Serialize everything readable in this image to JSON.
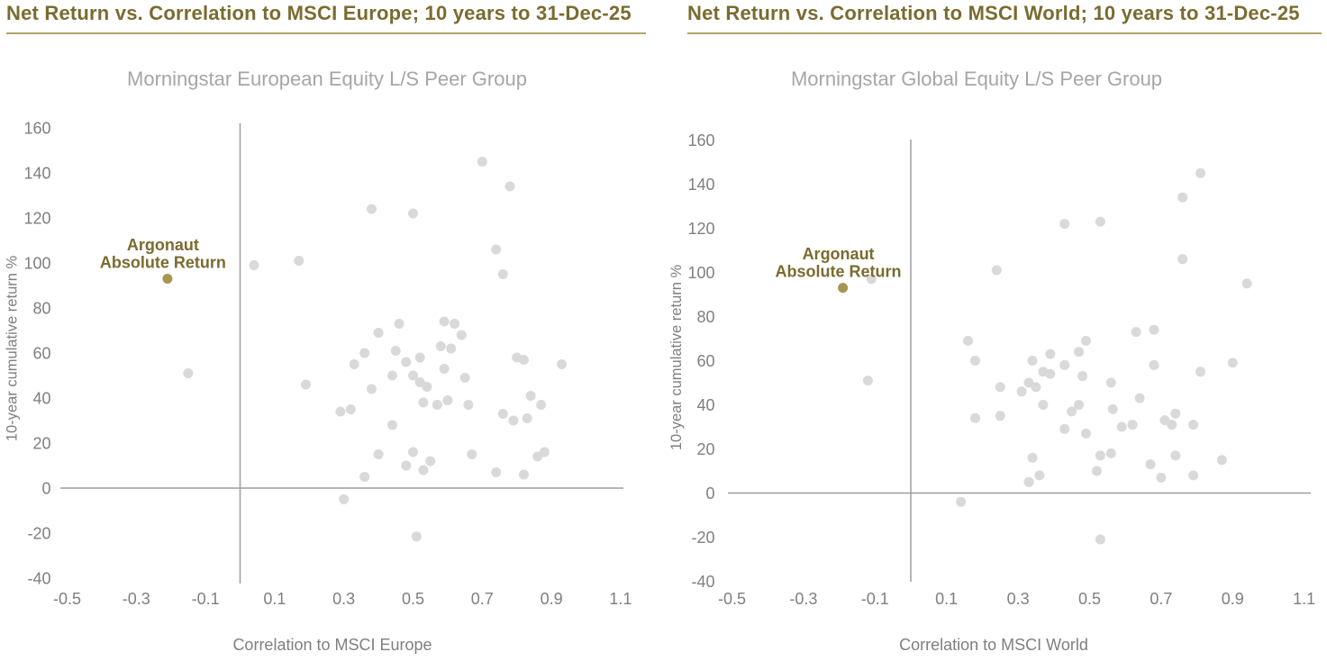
{
  "colors": {
    "title": "#7a6b2f",
    "rule": "#b3a567",
    "axis_line": "#9d9d9d",
    "tick_label": "#7f7f7f",
    "subtitle": "#a6a6a6",
    "axis_title": "#7f7f7f",
    "peer_point": "#d9d9d9",
    "argonaut": "#a79552"
  },
  "chart_data": [
    {
      "type": "scatter",
      "title": "Net Return vs. Correlation to MSCI Europe; 10 years to 31-Dec-25",
      "subtitle": "Morningstar European Equity L/S Peer Group",
      "xlabel": "Correlation to MSCI Europe",
      "ylabel": "10-year cumulative return %",
      "xlim": [
        -0.5,
        1.1
      ],
      "ylim": [
        -40,
        160
      ],
      "x_ticks": [
        -0.5,
        -0.3,
        -0.1,
        0.1,
        0.3,
        0.5,
        0.7,
        0.9,
        1.1
      ],
      "y_ticks": [
        160,
        140,
        120,
        100,
        80,
        60,
        40,
        20,
        0,
        -20,
        -40
      ],
      "grid": false,
      "legend": "none",
      "series": [
        {
          "name": "Morningstar European Equity L/S peer funds",
          "color": "#d9d9d9",
          "points": [
            [
              -0.15,
              51
            ],
            [
              0.04,
              99
            ],
            [
              0.17,
              101
            ],
            [
              0.19,
              46
            ],
            [
              0.38,
              124
            ],
            [
              0.5,
              122
            ],
            [
              0.7,
              145
            ],
            [
              0.78,
              134
            ],
            [
              0.74,
              106
            ],
            [
              0.76,
              95
            ],
            [
              0.46,
              73
            ],
            [
              0.4,
              69
            ],
            [
              0.59,
              74
            ],
            [
              0.62,
              73
            ],
            [
              0.64,
              68
            ],
            [
              0.58,
              63
            ],
            [
              0.61,
              62
            ],
            [
              0.36,
              60
            ],
            [
              0.45,
              61
            ],
            [
              0.52,
              58
            ],
            [
              0.48,
              56
            ],
            [
              0.33,
              55
            ],
            [
              0.44,
              50
            ],
            [
              0.5,
              50
            ],
            [
              0.52,
              47
            ],
            [
              0.54,
              45
            ],
            [
              0.65,
              49
            ],
            [
              0.59,
              53
            ],
            [
              0.8,
              58
            ],
            [
              0.82,
              57
            ],
            [
              0.93,
              55
            ],
            [
              0.38,
              44
            ],
            [
              0.29,
              34
            ],
            [
              0.32,
              35
            ],
            [
              0.53,
              38
            ],
            [
              0.57,
              37
            ],
            [
              0.6,
              39
            ],
            [
              0.66,
              37
            ],
            [
              0.44,
              28
            ],
            [
              0.76,
              33
            ],
            [
              0.79,
              30
            ],
            [
              0.83,
              31
            ],
            [
              0.84,
              41
            ],
            [
              0.87,
              37
            ],
            [
              0.4,
              15
            ],
            [
              0.5,
              16
            ],
            [
              0.48,
              10
            ],
            [
              0.53,
              8
            ],
            [
              0.55,
              12
            ],
            [
              0.36,
              5
            ],
            [
              0.67,
              15
            ],
            [
              0.86,
              14
            ],
            [
              0.88,
              16
            ],
            [
              0.74,
              7
            ],
            [
              0.82,
              6
            ],
            [
              0.3,
              -5
            ],
            [
              0.51,
              -21.5
            ]
          ]
        },
        {
          "name": "Argonaut Absolute Return",
          "color": "#a79552",
          "points": [
            [
              -0.21,
              93
            ]
          ],
          "annotation": [
            "Argonaut",
            "Absolute Return"
          ]
        }
      ]
    },
    {
      "type": "scatter",
      "title": "Net Return vs. Correlation to MSCI World; 10 years to 31-Dec-25",
      "subtitle": "Morningstar Global Equity L/S Peer Group",
      "xlabel": "Correlation to MSCI World",
      "ylabel": "10-year cumulative return %",
      "xlim": [
        -0.5,
        1.1
      ],
      "ylim": [
        -40,
        160
      ],
      "x_ticks": [
        -0.5,
        -0.3,
        -0.1,
        0.1,
        0.3,
        0.5,
        0.7,
        0.9,
        1.1
      ],
      "y_ticks": [
        160,
        140,
        120,
        100,
        80,
        60,
        40,
        20,
        0,
        -20,
        -40
      ],
      "grid": false,
      "legend": "none",
      "series": [
        {
          "name": "Morningstar Global Equity L/S peer funds",
          "color": "#d9d9d9",
          "points": [
            [
              -0.11,
              97
            ],
            [
              -0.12,
              51
            ],
            [
              0.14,
              -4
            ],
            [
              0.16,
              69
            ],
            [
              0.18,
              60
            ],
            [
              0.24,
              101
            ],
            [
              0.43,
              122
            ],
            [
              0.53,
              123
            ],
            [
              0.81,
              145
            ],
            [
              0.76,
              134
            ],
            [
              0.76,
              106
            ],
            [
              0.94,
              95
            ],
            [
              0.34,
              60
            ],
            [
              0.39,
              63
            ],
            [
              0.47,
              64
            ],
            [
              0.49,
              69
            ],
            [
              0.43,
              58
            ],
            [
              0.37,
              55
            ],
            [
              0.39,
              54
            ],
            [
              0.48,
              53
            ],
            [
              0.25,
              48
            ],
            [
              0.33,
              50
            ],
            [
              0.35,
              48
            ],
            [
              0.31,
              46
            ],
            [
              0.56,
              50
            ],
            [
              0.63,
              73
            ],
            [
              0.68,
              74
            ],
            [
              0.68,
              58
            ],
            [
              0.81,
              55
            ],
            [
              0.9,
              59
            ],
            [
              0.64,
              43
            ],
            [
              0.18,
              34
            ],
            [
              0.25,
              35
            ],
            [
              0.37,
              40
            ],
            [
              0.45,
              37
            ],
            [
              0.47,
              40
            ],
            [
              0.43,
              29
            ],
            [
              0.49,
              27
            ],
            [
              0.34,
              16
            ],
            [
              0.36,
              8
            ],
            [
              0.33,
              5
            ],
            [
              0.53,
              17
            ],
            [
              0.56,
              18
            ],
            [
              0.52,
              10
            ],
            [
              0.565,
              38
            ],
            [
              0.59,
              30
            ],
            [
              0.62,
              31
            ],
            [
              0.71,
              33
            ],
            [
              0.74,
              36
            ],
            [
              0.73,
              31
            ],
            [
              0.79,
              31
            ],
            [
              0.74,
              17
            ],
            [
              0.67,
              13
            ],
            [
              0.7,
              7
            ],
            [
              0.79,
              8
            ],
            [
              0.87,
              15
            ],
            [
              0.53,
              -21
            ]
          ]
        },
        {
          "name": "Argonaut Absolute Return",
          "color": "#a79552",
          "points": [
            [
              -0.19,
              93
            ]
          ],
          "annotation": [
            "Argonaut",
            "Absolute Return"
          ]
        }
      ]
    }
  ]
}
